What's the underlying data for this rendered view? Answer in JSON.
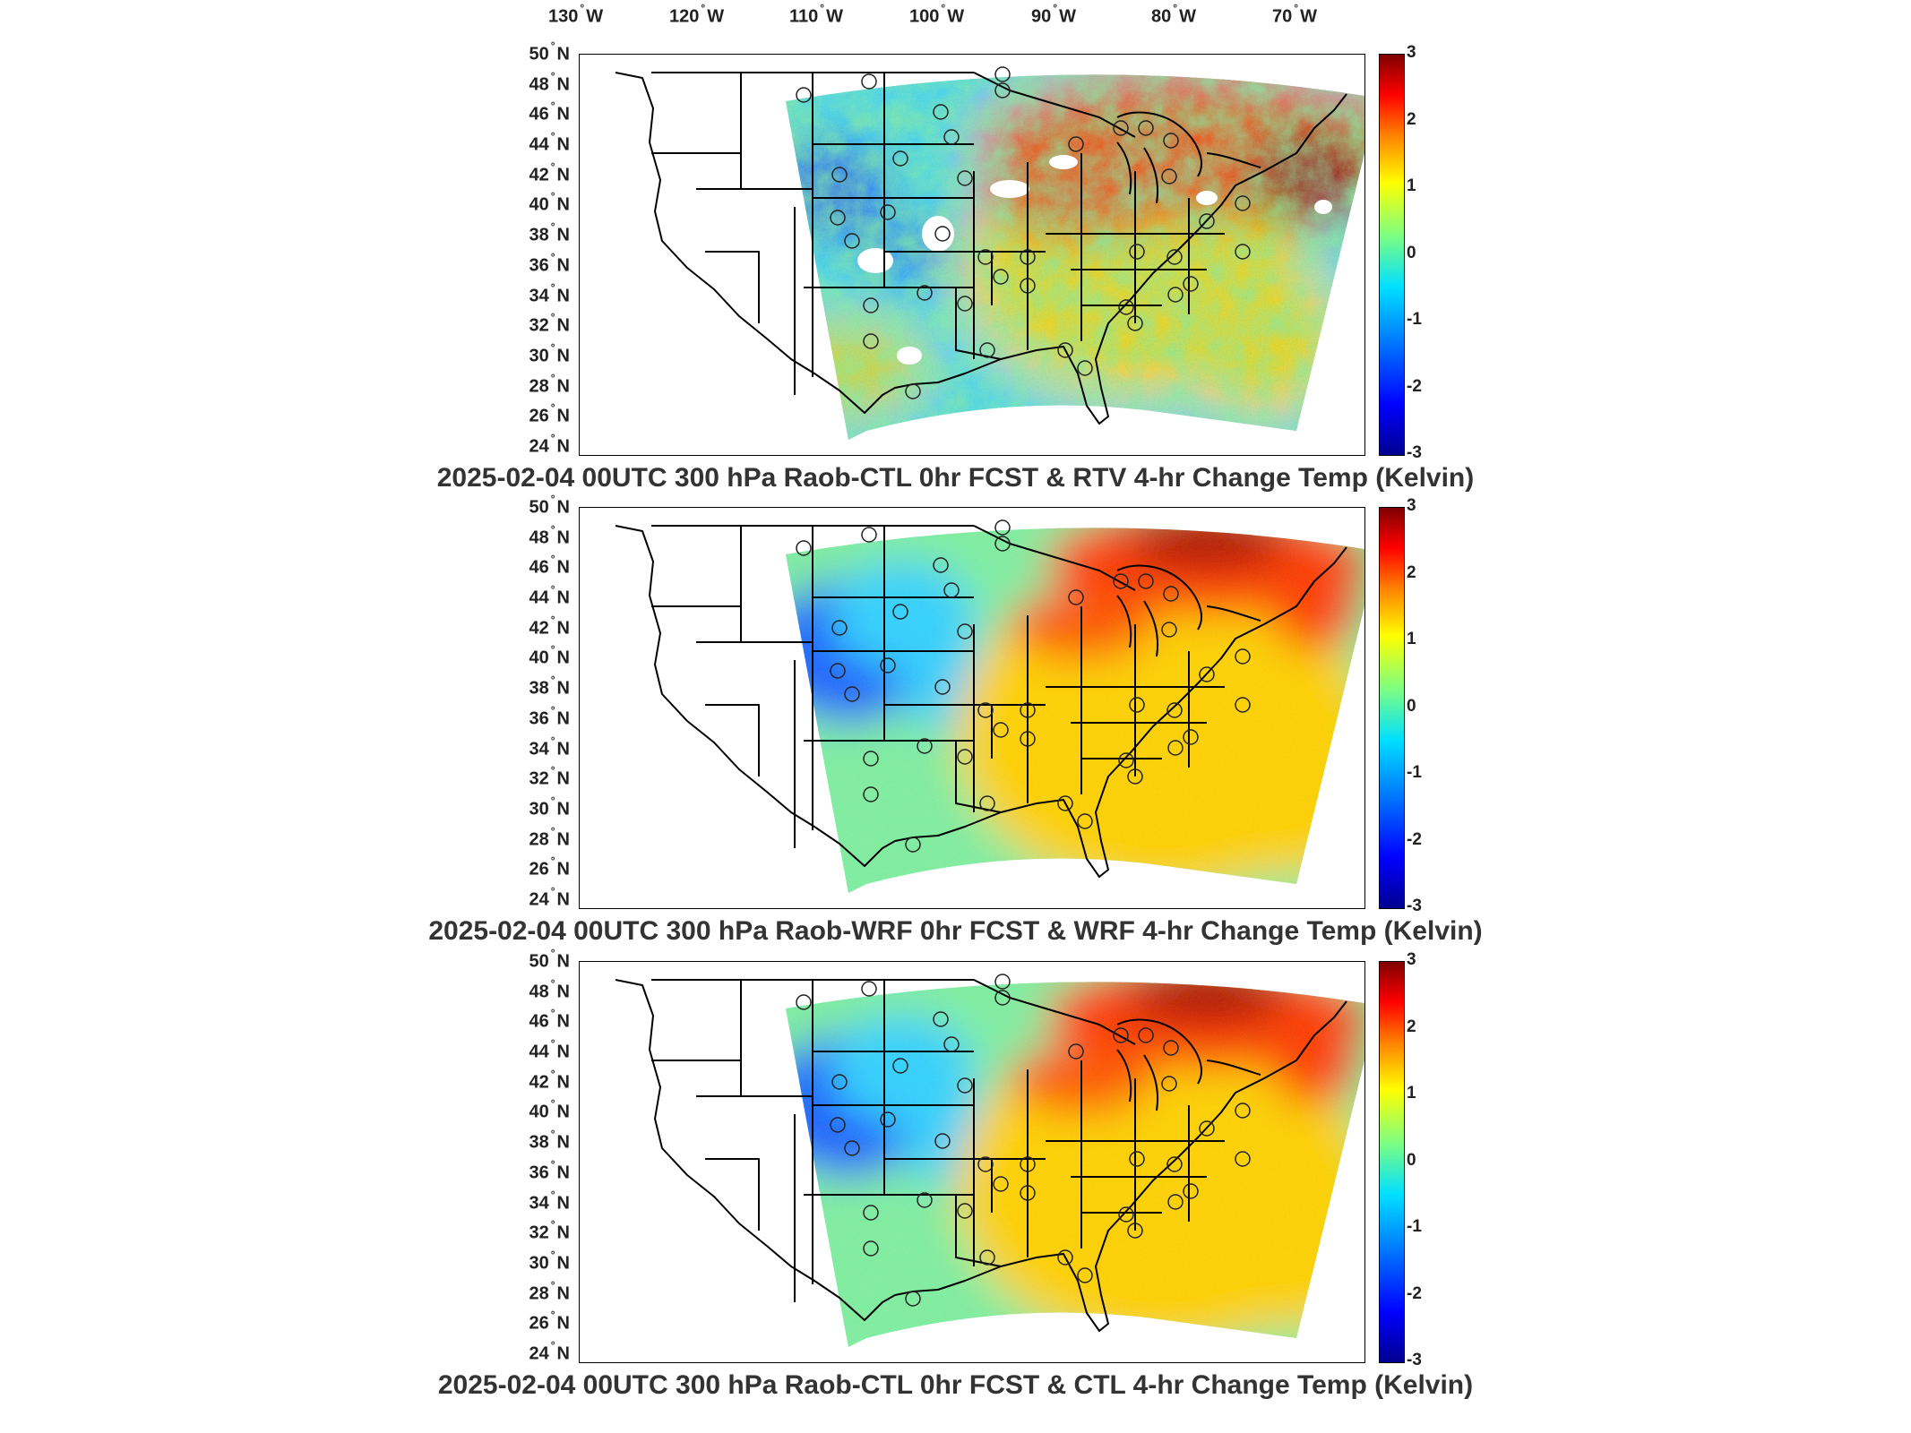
{
  "longitude_labels": [
    {
      "deg": "130",
      "hemi": "W"
    },
    {
      "deg": "120",
      "hemi": "W"
    },
    {
      "deg": "110",
      "hemi": "W"
    },
    {
      "deg": "100",
      "hemi": "W"
    },
    {
      "deg": "90",
      "hemi": "W"
    },
    {
      "deg": "80",
      "hemi": "W"
    },
    {
      "deg": "70",
      "hemi": "W"
    }
  ],
  "latitude_labels": [
    {
      "deg": "50",
      "hemi": "N"
    },
    {
      "deg": "48",
      "hemi": "N"
    },
    {
      "deg": "46",
      "hemi": "N"
    },
    {
      "deg": "44",
      "hemi": "N"
    },
    {
      "deg": "42",
      "hemi": "N"
    },
    {
      "deg": "40",
      "hemi": "N"
    },
    {
      "deg": "38",
      "hemi": "N"
    },
    {
      "deg": "36",
      "hemi": "N"
    },
    {
      "deg": "34",
      "hemi": "N"
    },
    {
      "deg": "32",
      "hemi": "N"
    },
    {
      "deg": "30",
      "hemi": "N"
    },
    {
      "deg": "28",
      "hemi": "N"
    },
    {
      "deg": "26",
      "hemi": "N"
    },
    {
      "deg": "24",
      "hemi": "N"
    }
  ],
  "colorbar": {
    "ticks": [
      "3",
      "2",
      "1",
      "0",
      "-1",
      "-2",
      "-3"
    ],
    "min": -3,
    "max": 3,
    "colormap": "jet"
  },
  "panels": [
    {
      "title": "2025-02-04 00UTC 300 hPa Raob-CTL 0hr FCST & RTV 4-hr Change Temp (Kelvin)",
      "style": "noisy"
    },
    {
      "title": "2025-02-04 00UTC 300 hPa Raob-WRF 0hr FCST & WRF 4-hr Change Temp (Kelvin)",
      "style": "smooth"
    },
    {
      "title": "2025-02-04 00UTC 300 hPa Raob-CTL 0hr FCST & CTL 4-hr Change Temp (Kelvin)",
      "style": "smooth"
    }
  ],
  "colors": {
    "cold": "#1e64ff",
    "cool": "#32d2ff",
    "neutral": "#7ff0a0",
    "warm": "#ffd200",
    "hot": "#ff3c00",
    "hottest": "#a00000"
  }
}
